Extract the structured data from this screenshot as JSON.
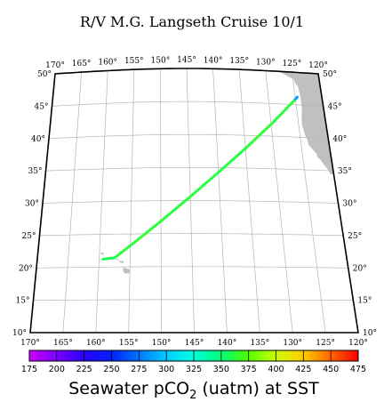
{
  "title": "R/V M.G. Langseth Cruise 10/1",
  "map": {
    "lon_range": [
      -170,
      -120
    ],
    "lat_range": [
      10,
      50
    ],
    "lon_ticks": [
      -170,
      -165,
      -160,
      -155,
      -150,
      -145,
      -140,
      -135,
      -130,
      -125,
      -120
    ],
    "lat_ticks": [
      10,
      15,
      20,
      25,
      30,
      35,
      40,
      45,
      50
    ],
    "lon_labels": [
      "170°",
      "165°",
      "160°",
      "155°",
      "150°",
      "145°",
      "140°",
      "135°",
      "130°",
      "125°",
      "120°"
    ],
    "lat_labels": [
      "10°",
      "15°",
      "20°",
      "25°",
      "30°",
      "35°",
      "40°",
      "45°",
      "50°"
    ],
    "graticule": true,
    "land_color": "#c0c0c0",
    "ship_track": [
      {
        "lon": -124.6,
        "lat": 46.2,
        "pco2": 215
      },
      {
        "lon": -125.3,
        "lat": 45.6,
        "pco2": 360
      },
      {
        "lon": -129.5,
        "lat": 42.2,
        "pco2": 365
      },
      {
        "lon": -135.0,
        "lat": 38.0,
        "pco2": 362
      },
      {
        "lon": -140.0,
        "lat": 34.3,
        "pco2": 360
      },
      {
        "lon": -145.0,
        "lat": 30.6,
        "pco2": 363
      },
      {
        "lon": -150.0,
        "lat": 26.9,
        "pco2": 362
      },
      {
        "lon": -154.5,
        "lat": 23.6,
        "pco2": 365
      },
      {
        "lon": -157.5,
        "lat": 21.4,
        "pco2": 360
      },
      {
        "lon": -158.6,
        "lat": 21.3,
        "pco2": 355
      },
      {
        "lon": -159.4,
        "lat": 21.2,
        "pco2": 360
      }
    ]
  },
  "colorbar": {
    "min": 175,
    "max": 475,
    "ticks": [
      175,
      200,
      225,
      250,
      275,
      300,
      325,
      350,
      375,
      400,
      425,
      450,
      475
    ],
    "tick_labels": [
      "175",
      "200",
      "225",
      "250",
      "275",
      "300",
      "325",
      "350",
      "375",
      "400",
      "425",
      "450",
      "475"
    ],
    "colors": [
      "#cc00ff",
      "#7a00ff",
      "#2a00ff",
      "#0022ff",
      "#0077ff",
      "#00ccff",
      "#00ffdd",
      "#00ff77",
      "#55ff00",
      "#ccff00",
      "#ffcc00",
      "#ff6600",
      "#ff0000"
    ],
    "label_main": "Seawater pCO",
    "label_sub": "2",
    "label_rest": " (uatm) at SST"
  }
}
